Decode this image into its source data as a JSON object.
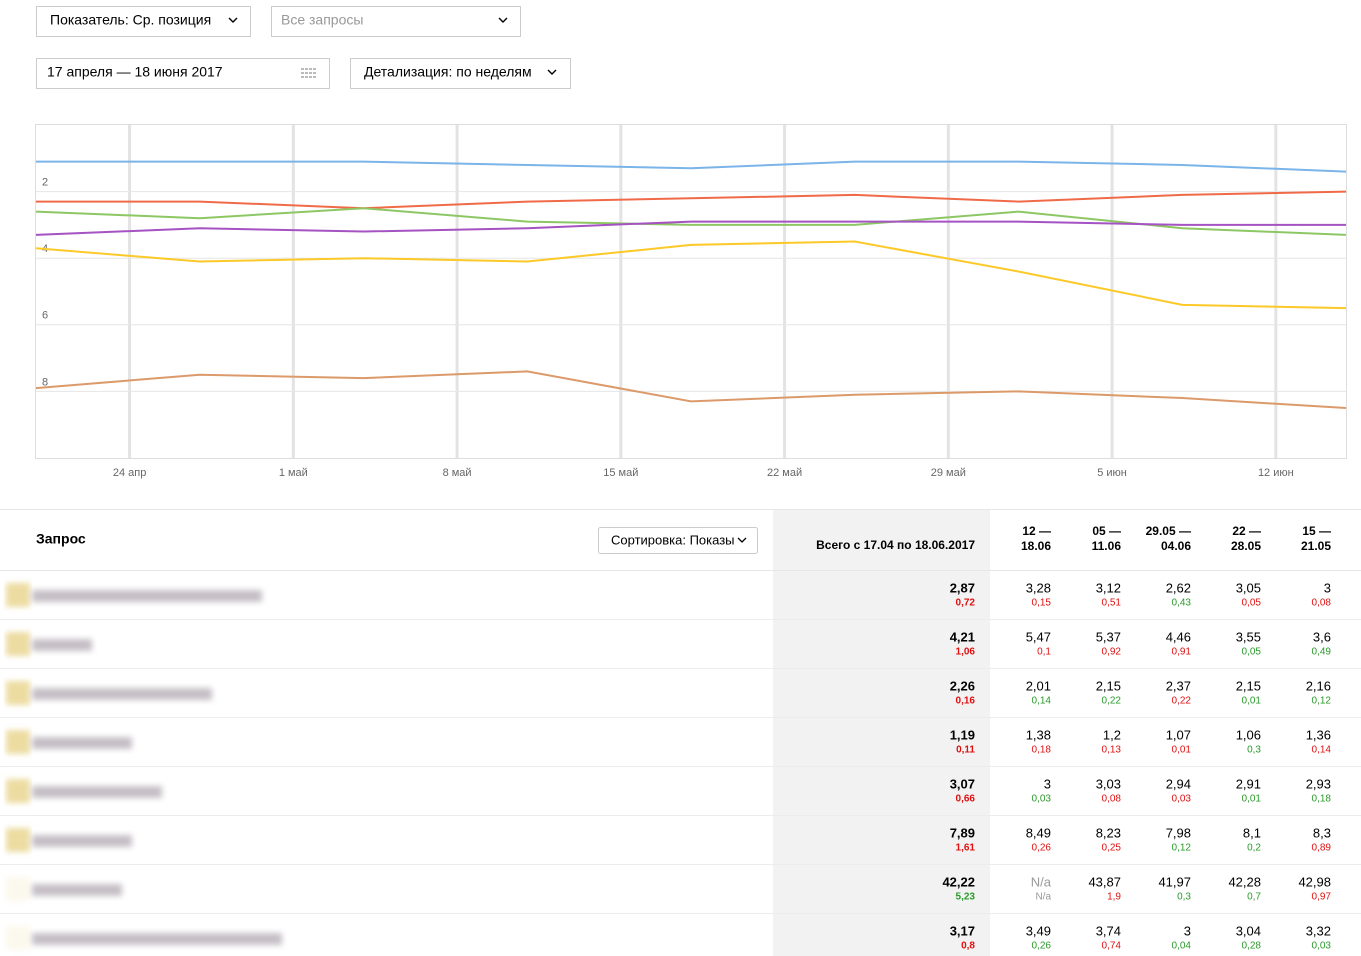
{
  "controls": {
    "metric": "Показатель: Ср. позиция",
    "queries": "Все запросы",
    "date_range": "17 апреля — 18 июня 2017",
    "detail": "Детализация: по неделям"
  },
  "chart_data": {
    "type": "line",
    "x": [
      "2017-04-20",
      "2017-04-27",
      "2017-05-04",
      "2017-05-11",
      "2017-05-18",
      "2017-05-25",
      "2017-06-01",
      "2017-06-08",
      "2017-06-15"
    ],
    "xlim": [
      "2017-04-20",
      "2017-06-15"
    ],
    "xticks": [
      {
        "value": "2017-04-24",
        "label": "24 апр"
      },
      {
        "value": "2017-05-01",
        "label": "1 май"
      },
      {
        "value": "2017-05-08",
        "label": "8 май"
      },
      {
        "value": "2017-05-15",
        "label": "15 май"
      },
      {
        "value": "2017-05-22",
        "label": "22 май"
      },
      {
        "value": "2017-05-29",
        "label": "29 май"
      },
      {
        "value": "2017-06-05",
        "label": "5 июн"
      },
      {
        "value": "2017-06-12",
        "label": "12 июн"
      }
    ],
    "ylim": [
      0,
      10
    ],
    "yticks": [
      2,
      4,
      6,
      8
    ],
    "y_inverted": true,
    "grid": true,
    "series": [
      {
        "color": "#7ab4e8",
        "values": [
          1.1,
          1.1,
          1.1,
          1.2,
          1.3,
          1.1,
          1.1,
          1.2,
          1.4
        ]
      },
      {
        "color": "#f06a48",
        "values": [
          2.3,
          2.3,
          2.5,
          2.3,
          2.2,
          2.1,
          2.3,
          2.1,
          2.0
        ]
      },
      {
        "color": "#8dc763",
        "values": [
          2.6,
          2.8,
          2.5,
          2.9,
          3.0,
          3.0,
          2.6,
          3.1,
          3.3
        ]
      },
      {
        "color": "#a552c2",
        "values": [
          3.3,
          3.1,
          3.2,
          3.1,
          2.9,
          2.9,
          2.9,
          3.0,
          3.0
        ]
      },
      {
        "color": "#fcc928",
        "values": [
          3.7,
          4.1,
          4.0,
          4.1,
          3.6,
          3.5,
          4.4,
          5.4,
          5.5
        ]
      },
      {
        "color": "#dc9a6a",
        "values": [
          7.9,
          7.5,
          7.6,
          7.4,
          8.3,
          8.1,
          8.0,
          8.2,
          8.5
        ]
      }
    ]
  },
  "table": {
    "query_header": "Запрос",
    "sort": "Сортировка: Показы",
    "total_header": "Всего с 17.04 по 18.06.2017",
    "week_headers": [
      [
        "12 —",
        "18.06"
      ],
      [
        "05 —",
        "11.06"
      ],
      [
        "29.05 —",
        "04.06"
      ],
      [
        "22 —",
        "28.05"
      ],
      [
        "15 —",
        "21.05"
      ]
    ],
    "rows": [
      [
        {
          "v": "2,87",
          "d": "0,72",
          "c": "#e01010"
        },
        {
          "v": "3,28",
          "d": "0,15",
          "c": "#e01010"
        },
        {
          "v": "3,12",
          "d": "0,51",
          "c": "#e01010"
        },
        {
          "v": "2,62",
          "d": "0,43",
          "c": "#2a9a2a"
        },
        {
          "v": "3,05",
          "d": "0,05",
          "c": "#e01010"
        },
        {
          "v": "3",
          "d": "0,08",
          "c": "#e01010"
        }
      ],
      [
        {
          "v": "4,21",
          "d": "1,06",
          "c": "#e01010"
        },
        {
          "v": "5,47",
          "d": "0,1",
          "c": "#e01010"
        },
        {
          "v": "5,37",
          "d": "0,92",
          "c": "#e01010"
        },
        {
          "v": "4,46",
          "d": "0,91",
          "c": "#e01010"
        },
        {
          "v": "3,55",
          "d": "0,05",
          "c": "#2a9a2a"
        },
        {
          "v": "3,6",
          "d": "0,49",
          "c": "#2a9a2a"
        }
      ],
      [
        {
          "v": "2,26",
          "d": "0,16",
          "c": "#e01010"
        },
        {
          "v": "2,01",
          "d": "0,14",
          "c": "#2a9a2a"
        },
        {
          "v": "2,15",
          "d": "0,22",
          "c": "#2a9a2a"
        },
        {
          "v": "2,37",
          "d": "0,22",
          "c": "#e01010"
        },
        {
          "v": "2,15",
          "d": "0,01",
          "c": "#2a9a2a"
        },
        {
          "v": "2,16",
          "d": "0,12",
          "c": "#2a9a2a"
        }
      ],
      [
        {
          "v": "1,19",
          "d": "0,11",
          "c": "#e01010"
        },
        {
          "v": "1,38",
          "d": "0,18",
          "c": "#e01010"
        },
        {
          "v": "1,2",
          "d": "0,13",
          "c": "#e01010"
        },
        {
          "v": "1,07",
          "d": "0,01",
          "c": "#e01010"
        },
        {
          "v": "1,06",
          "d": "0,3",
          "c": "#2a9a2a"
        },
        {
          "v": "1,36",
          "d": "0,14",
          "c": "#e01010"
        }
      ],
      [
        {
          "v": "3,07",
          "d": "0,66",
          "c": "#e01010"
        },
        {
          "v": "3",
          "d": "0,03",
          "c": "#2a9a2a"
        },
        {
          "v": "3,03",
          "d": "0,08",
          "c": "#e01010"
        },
        {
          "v": "2,94",
          "d": "0,03",
          "c": "#e01010"
        },
        {
          "v": "2,91",
          "d": "0,01",
          "c": "#2a9a2a"
        },
        {
          "v": "2,93",
          "d": "0,18",
          "c": "#2a9a2a"
        }
      ],
      [
        {
          "v": "7,89",
          "d": "1,61",
          "c": "#e01010"
        },
        {
          "v": "8,49",
          "d": "0,26",
          "c": "#e01010"
        },
        {
          "v": "8,23",
          "d": "0,25",
          "c": "#e01010"
        },
        {
          "v": "7,98",
          "d": "0,12",
          "c": "#2a9a2a"
        },
        {
          "v": "8,1",
          "d": "0,2",
          "c": "#2a9a2a"
        },
        {
          "v": "8,3",
          "d": "0,89",
          "c": "#e01010"
        }
      ],
      [
        {
          "v": "42,22",
          "d": "5,23",
          "c": "#2a9a2a"
        },
        {
          "v": "N/a",
          "d": "N/a",
          "c": "#999999"
        },
        {
          "v": "43,87",
          "d": "1,9",
          "c": "#e01010"
        },
        {
          "v": "41,97",
          "d": "0,3",
          "c": "#2a9a2a"
        },
        {
          "v": "42,28",
          "d": "0,7",
          "c": "#2a9a2a"
        },
        {
          "v": "42,98",
          "d": "0,97",
          "c": "#e01010"
        }
      ],
      [
        {
          "v": "3,17",
          "d": "0,8",
          "c": "#e01010"
        },
        {
          "v": "3,49",
          "d": "0,26",
          "c": "#2a9a2a"
        },
        {
          "v": "3,74",
          "d": "0,74",
          "c": "#e01010"
        },
        {
          "v": "3",
          "d": "0,04",
          "c": "#2a9a2a"
        },
        {
          "v": "3,04",
          "d": "0,28",
          "c": "#2a9a2a"
        },
        {
          "v": "3,32",
          "d": "0,03",
          "c": "#2a9a2a"
        }
      ]
    ]
  }
}
